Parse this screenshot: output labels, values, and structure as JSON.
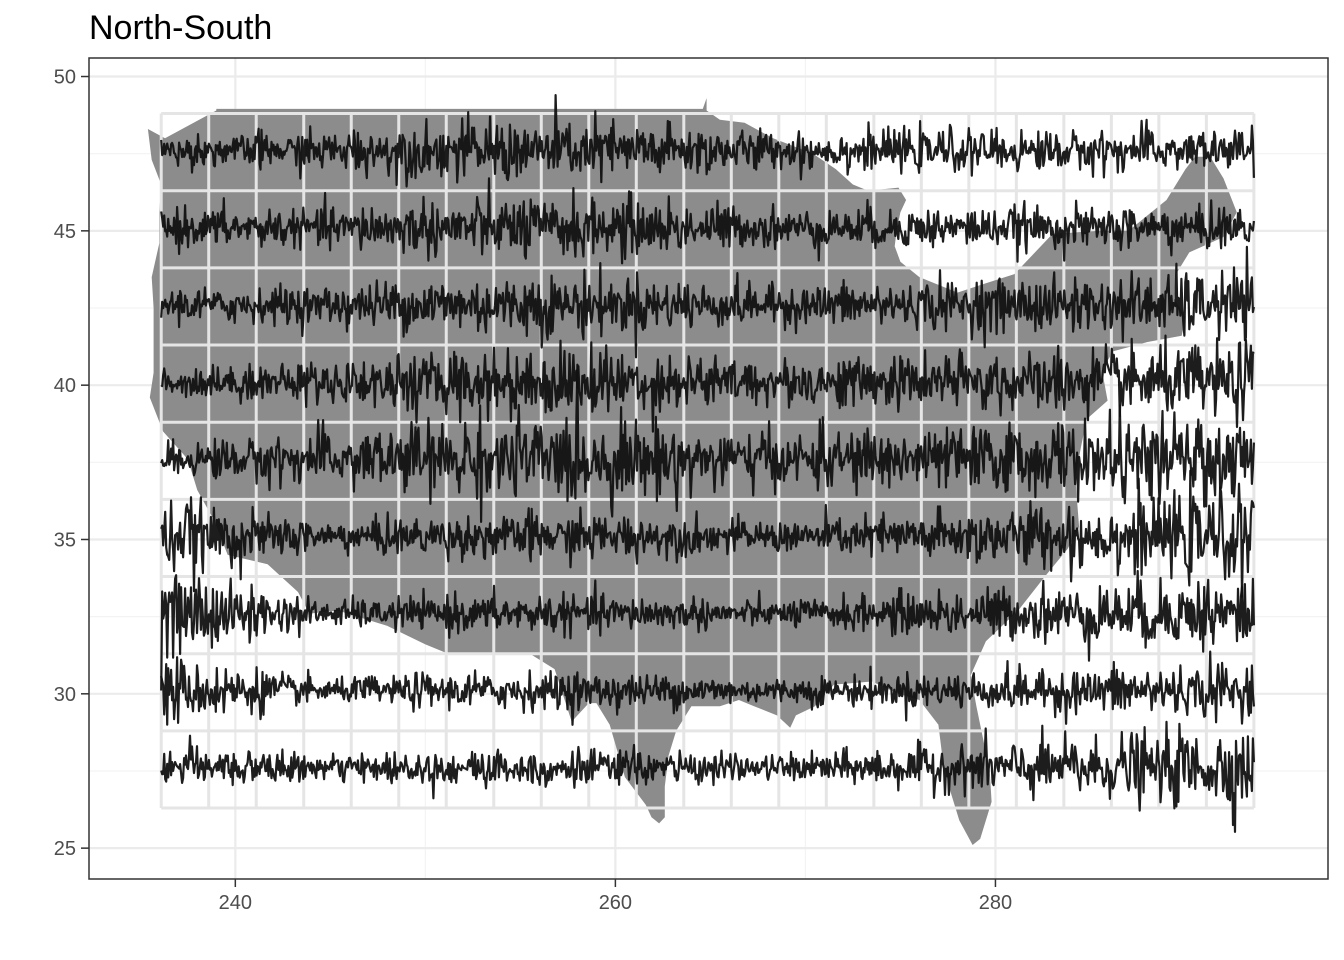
{
  "chart_data": {
    "type": "line",
    "title": "North-South",
    "xlabel": "",
    "ylabel": "",
    "xlim": [
      232.3,
      297.5
    ],
    "ylim": [
      24.0,
      50.6
    ],
    "x_ticks": [
      240,
      260,
      280
    ],
    "y_ticks": [
      25,
      30,
      35,
      40,
      45,
      50
    ],
    "grid": true,
    "legend": "none",
    "background_map": "contiguous United States (grey fill)",
    "panel_grid": {
      "lon_edges": [
        236.1,
        238.6,
        241.1,
        243.6,
        246.1,
        248.6,
        251.1,
        253.6,
        256.1,
        258.6,
        261.1,
        263.6,
        266.1,
        268.6,
        271.1,
        273.6,
        276.1,
        278.6,
        281.1,
        283.6,
        286.1,
        288.6,
        291.1,
        293.6
      ],
      "lat_edges": [
        26.3,
        28.8,
        31.3,
        33.8,
        36.3,
        38.8,
        41.3,
        43.8,
        46.3,
        48.8
      ]
    },
    "series": [
      {
        "baseline_lat": 27.6,
        "west_amp": 0.45,
        "mid_amp": 0.25,
        "east_amp": 0.85
      },
      {
        "baseline_lat": 30.1,
        "west_amp": 0.75,
        "mid_amp": 0.25,
        "east_amp": 0.6
      },
      {
        "baseline_lat": 32.6,
        "west_amp": 1.0,
        "mid_amp": 0.25,
        "east_amp": 0.8
      },
      {
        "baseline_lat": 35.1,
        "west_amp": 0.8,
        "mid_amp": 0.3,
        "east_amp": 0.9
      },
      {
        "baseline_lat": 37.6,
        "west_amp": 0.35,
        "mid_amp": 0.55,
        "east_amp": 0.9
      },
      {
        "baseline_lat": 40.1,
        "west_amp": 0.3,
        "mid_amp": 0.45,
        "east_amp": 0.8
      },
      {
        "baseline_lat": 42.6,
        "west_amp": 0.35,
        "mid_amp": 0.4,
        "east_amp": 0.7
      },
      {
        "baseline_lat": 45.1,
        "west_amp": 0.4,
        "mid_amp": 0.4,
        "east_amp": 0.45
      },
      {
        "baseline_lat": 47.6,
        "west_amp": 0.3,
        "mid_amp": 0.4,
        "east_amp": 0.45
      }
    ],
    "colors": {
      "land": "#8c8c8c",
      "series_line": "#111111",
      "panel_grid_line": "#e5e5e5",
      "plot_grid_major": "#ebebeb",
      "plot_grid_minor": "#f3f3f3",
      "panel_border": "#333333",
      "tick_text": "#4d4d4d"
    }
  }
}
